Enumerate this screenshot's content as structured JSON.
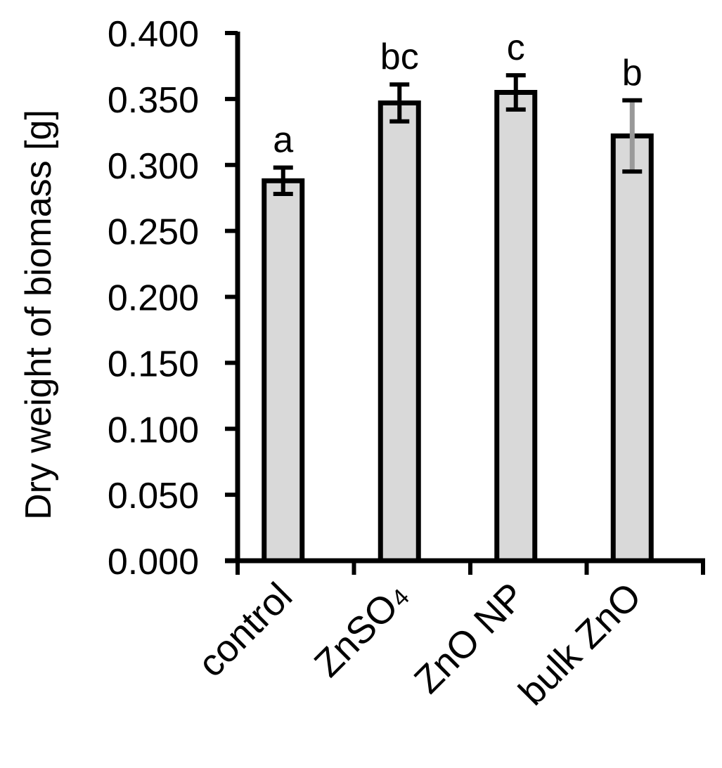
{
  "chart_data": {
    "type": "bar",
    "title": "",
    "xlabel": "",
    "ylabel": "Dry weight of biomass [g]",
    "ylim": [
      0,
      0.4
    ],
    "yticks": [
      "0.000",
      "0.050",
      "0.100",
      "0.150",
      "0.200",
      "0.250",
      "0.300",
      "0.350",
      "0.400"
    ],
    "categories": [
      {
        "main": "control",
        "sub": ""
      },
      {
        "main": "ZnSO",
        "sub": "4"
      },
      {
        "main": "ZnO NP",
        "sub": ""
      },
      {
        "main": "bulk ZnO",
        "sub": ""
      }
    ],
    "values": [
      0.288,
      0.347,
      0.355,
      0.322
    ],
    "errors": [
      0.01,
      0.014,
      0.013,
      0.027
    ],
    "significance": [
      "a",
      "bc",
      "c",
      "b"
    ],
    "grid": false,
    "legend": "none",
    "colors": {
      "bar_fill": "#d9d9d9",
      "bar_stroke": "#000000",
      "axis": "#000000",
      "error_bar_bulk": "#999999"
    }
  }
}
